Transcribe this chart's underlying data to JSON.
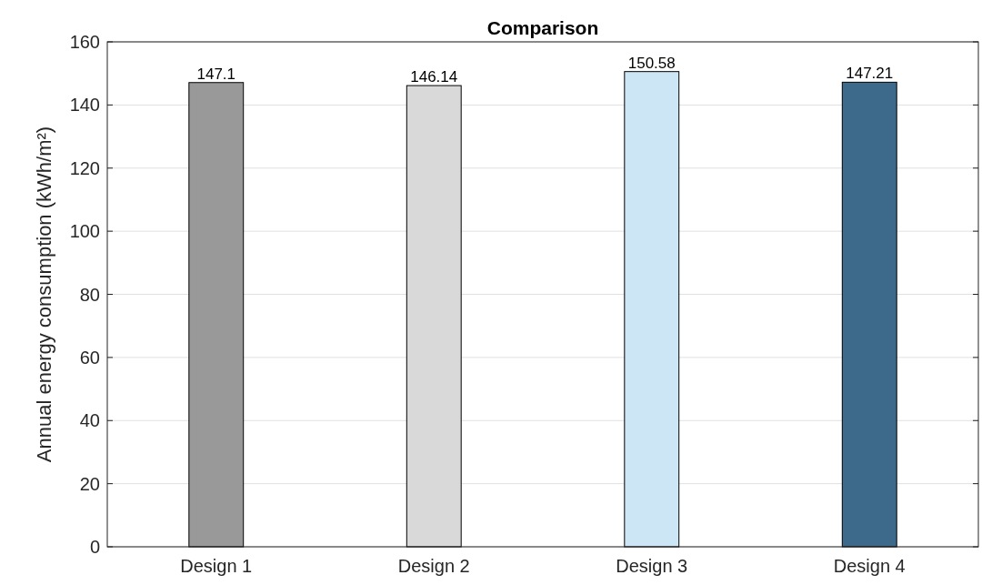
{
  "chart_data": {
    "type": "bar",
    "title": "Comparison",
    "ylabel": "Annual energy consumption (kWh/m²)",
    "categories": [
      "Design 1",
      "Design 2",
      "Design 3",
      "Design 4"
    ],
    "values": [
      147.1,
      146.14,
      150.58,
      147.21
    ],
    "colors": [
      "#999999",
      "#d9d9d9",
      "#cce6f6",
      "#3d6a8a"
    ],
    "ylim": [
      0,
      160
    ],
    "yticks": [
      0,
      20,
      40,
      60,
      80,
      100,
      120,
      140,
      160
    ],
    "grid": true,
    "data_labels": true
  }
}
